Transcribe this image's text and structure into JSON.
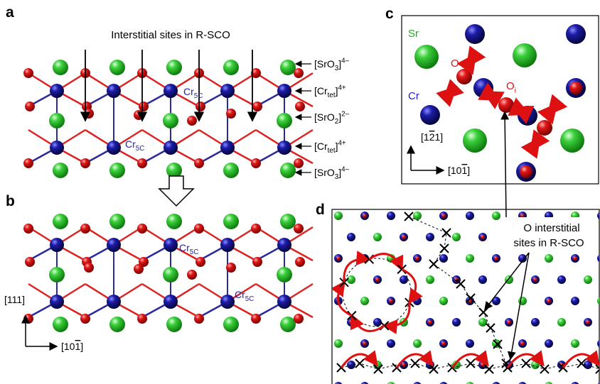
{
  "panel_a": {
    "label": "a",
    "title": "Interstitial sites in R-SCO",
    "layers": [
      {
        "base": "[SrO",
        "sub": "3",
        "close": "]",
        "sup": "4–"
      },
      {
        "base": "[Cr",
        "sub": "tet",
        "close": "]",
        "sup": "4+"
      },
      {
        "base": "[SrO",
        "sub": "2",
        "close": "]",
        "sup": "2–"
      },
      {
        "base": "[Cr",
        "sub": "tet",
        "close": "]",
        "sup": "4+"
      },
      {
        "base": "[SrO",
        "sub": "3",
        "close": "]",
        "sup": "4–"
      }
    ],
    "cr5c": [
      {
        "base": "Cr",
        "sub": "5C"
      },
      {
        "base": "Cr",
        "sub": "5C"
      }
    ]
  },
  "panel_b": {
    "label": "b",
    "cr5c": [
      {
        "base": "Cr",
        "sub": "5C"
      },
      {
        "base": "Cr",
        "sub": "5C"
      }
    ],
    "axis_vertical": "[111]",
    "axis_horizontal": {
      "pre": "[10",
      "bar": "1",
      "post": "]"
    }
  },
  "panel_c": {
    "label": "c",
    "sr": "Sr",
    "cr": "Cr",
    "o": "O",
    "oi": {
      "base": "O",
      "sub": "i"
    },
    "axis_vertical": {
      "pre": "[1",
      "bar": "2",
      "post": "1]"
    },
    "axis_horizontal": {
      "pre": "[10",
      "bar": "1",
      "post": "]"
    }
  },
  "panel_d": {
    "label": "d",
    "annotation": [
      "O interstitial",
      "sites in R-SCO"
    ]
  }
}
